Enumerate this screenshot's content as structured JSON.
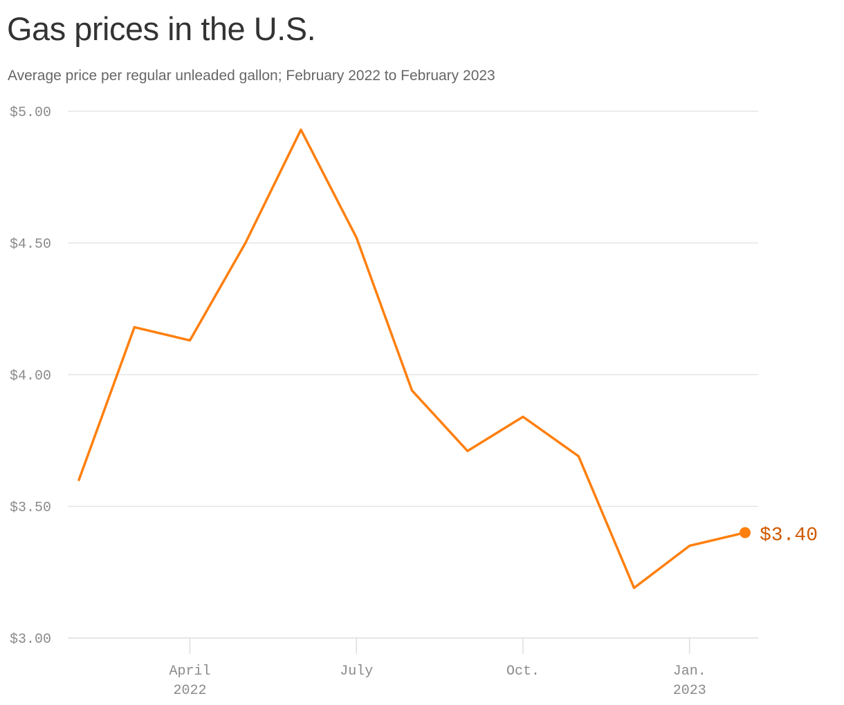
{
  "title": "Gas prices in the U.S.",
  "subtitle": "Average price per regular unleaded gallon; February 2022 to February 2023",
  "colors": {
    "line": "#ff7f0e",
    "end_label": "#d05a00",
    "grid": "#e0e0e0",
    "tick_text": "#8a8a8a"
  },
  "chart_data": {
    "type": "line",
    "title": "Gas prices in the U.S.",
    "subtitle": "Average price per regular unleaded gallon; February 2022 to February 2023",
    "x": [
      "2022-02",
      "2022-03",
      "2022-04",
      "2022-05",
      "2022-06",
      "2022-07",
      "2022-08",
      "2022-09",
      "2022-10",
      "2022-11",
      "2022-12",
      "2023-01",
      "2023-02"
    ],
    "series": [
      {
        "values": [
          3.6,
          4.18,
          4.13,
          4.5,
          4.93,
          4.52,
          3.94,
          3.71,
          3.84,
          3.69,
          3.19,
          3.35,
          3.4
        ]
      }
    ],
    "ylim": [
      3.0,
      5.0
    ],
    "y_ticks": [
      {
        "value": 5.0,
        "label": "$5.00"
      },
      {
        "value": 4.5,
        "label": "$4.50"
      },
      {
        "value": 4.0,
        "label": "$4.00"
      },
      {
        "value": 3.5,
        "label": "$3.50"
      },
      {
        "value": 3.0,
        "label": "$3.00"
      }
    ],
    "x_ticks": [
      {
        "at": "2022-04",
        "label": "April",
        "sublabel": "2022"
      },
      {
        "at": "2022-07",
        "label": "July",
        "sublabel": ""
      },
      {
        "at": "2022-10",
        "label": "Oct.",
        "sublabel": ""
      },
      {
        "at": "2023-01",
        "label": "Jan.",
        "sublabel": "2023"
      }
    ],
    "end_label": "$3.40",
    "grid": true,
    "legend": "none"
  }
}
